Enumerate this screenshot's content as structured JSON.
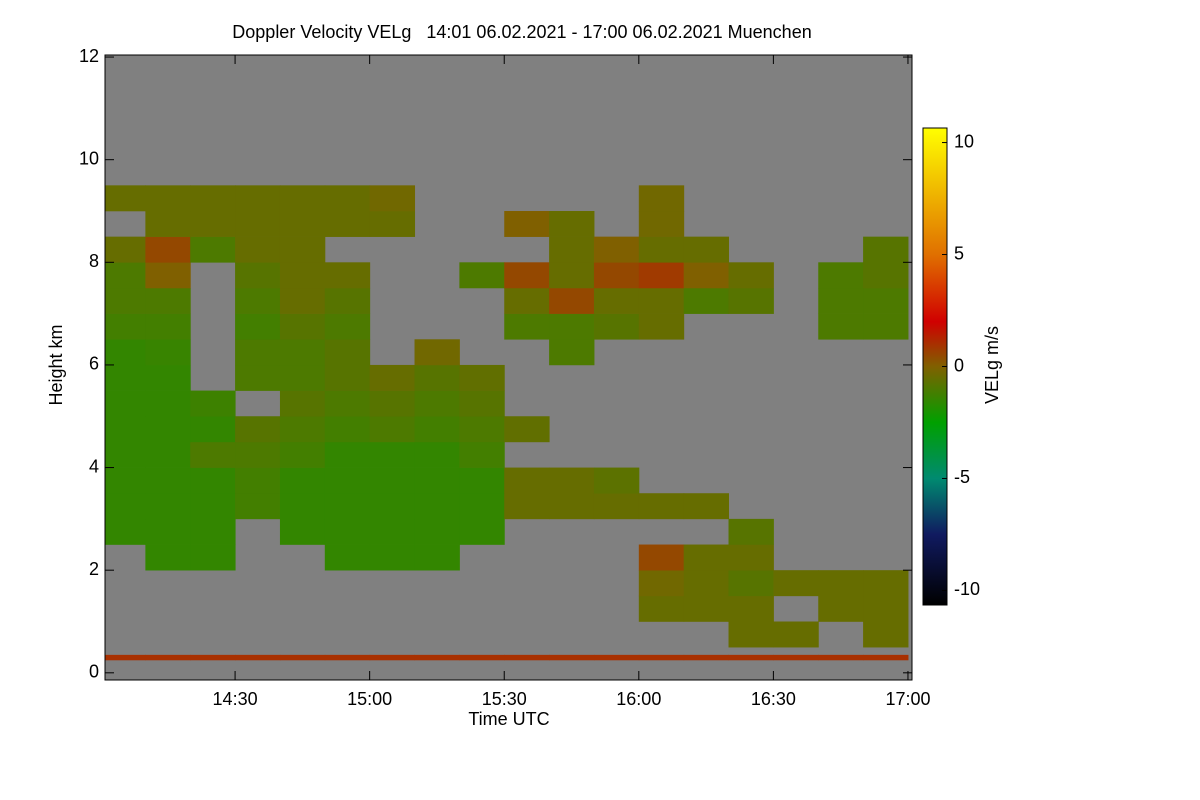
{
  "chart_data": {
    "type": "heatmap",
    "title": "Doppler Velocity VELg   14:01 06.02.2021 - 17:00 06.02.2021 Muenchen",
    "x_label": "Time UTC",
    "y_label": "Height km",
    "colorbar_label": "VELg m/s",
    "background": "#808080",
    "grid": false,
    "xlim": [
      14.0167,
      17.015
    ],
    "xticks": [
      {
        "value": 14.5,
        "label": "14:30"
      },
      {
        "value": 15.0,
        "label": "15:00"
      },
      {
        "value": 15.5,
        "label": "15:30"
      },
      {
        "value": 16.0,
        "label": "16:00"
      },
      {
        "value": 16.5,
        "label": "16:30"
      },
      {
        "value": 17.0,
        "label": "17:00"
      }
    ],
    "ylim": [
      -0.14,
      12.04
    ],
    "yticks": [
      0,
      2,
      4,
      6,
      8,
      10,
      12
    ],
    "zlim": [
      -10.65,
      10.65
    ],
    "zticks": [
      -10,
      -5,
      0,
      5,
      10
    ],
    "colormap": [
      [
        -10.65,
        "#000000"
      ],
      [
        -7.5,
        "#101a60"
      ],
      [
        -5,
        "#008a70"
      ],
      [
        -2.5,
        "#00a000"
      ],
      [
        0,
        "#806000"
      ],
      [
        2,
        "#d00000"
      ],
      [
        5,
        "#e07000"
      ],
      [
        10.65,
        "#ffff00"
      ]
    ],
    "xbins": [
      14.0,
      14.1667,
      14.3333,
      14.5,
      14.6667,
      14.8333,
      15.0,
      15.1667,
      15.3333,
      15.5,
      15.6667,
      15.8333,
      16.0,
      16.1667,
      16.3333,
      16.5,
      16.6667,
      16.8333,
      17.0
    ],
    "ybins": [
      0.25,
      0.35,
      0.5,
      1.0,
      1.5,
      2.0,
      2.5,
      3.0,
      3.5,
      4.0,
      4.5,
      5.0,
      5.5,
      6.0,
      6.5,
      7.0,
      7.5,
      8.0,
      8.5,
      9.0,
      9.5,
      10.0,
      10.5,
      11.0,
      11.5,
      12.0
    ],
    "values": [
      [
        1,
        1,
        1,
        1,
        1,
        1,
        1,
        1,
        1,
        1,
        1,
        1,
        1,
        1,
        1,
        1,
        1,
        1
      ],
      [
        null,
        null,
        null,
        null,
        null,
        null,
        null,
        null,
        null,
        null,
        null,
        null,
        null,
        null,
        null,
        null,
        null,
        null
      ],
      [
        null,
        null,
        null,
        null,
        null,
        null,
        null,
        null,
        null,
        null,
        null,
        null,
        null,
        null,
        -0.5,
        -0.5,
        null,
        -0.5
      ],
      [
        null,
        null,
        null,
        null,
        null,
        null,
        null,
        null,
        null,
        null,
        null,
        null,
        -0.5,
        -0.5,
        -0.5,
        null,
        -0.5,
        -0.5
      ],
      [
        null,
        null,
        null,
        null,
        null,
        null,
        null,
        null,
        null,
        null,
        null,
        null,
        -0.3,
        -0.5,
        -0.8,
        -0.5,
        -0.5,
        -0.5
      ],
      [
        null,
        -1.5,
        -1.5,
        null,
        null,
        -1.5,
        -1.5,
        -1.5,
        null,
        null,
        null,
        null,
        0.5,
        -0.5,
        -0.5,
        null,
        null,
        null
      ],
      [
        -1.5,
        -1.5,
        -1.5,
        null,
        -1.5,
        -1.5,
        -1.5,
        -1.5,
        -1.5,
        null,
        null,
        null,
        null,
        null,
        -0.8,
        null,
        null,
        null
      ],
      [
        -1.5,
        -1.5,
        -1.5,
        -1.2,
        -1.5,
        -1.5,
        -1.5,
        -1.5,
        -1.5,
        -0.5,
        -0.5,
        -0.5,
        -0.5,
        -0.5,
        null,
        null,
        null,
        null
      ],
      [
        -1.5,
        -1.5,
        -1.5,
        -1.2,
        -1.5,
        -1.5,
        -1.5,
        -1.5,
        -1.5,
        -0.5,
        -0.5,
        -0.7,
        null,
        null,
        null,
        null,
        null,
        null
      ],
      [
        -1.5,
        -1.5,
        -1,
        -1,
        -1.2,
        -1.5,
        -1.5,
        -1.5,
        -1.2,
        null,
        null,
        null,
        null,
        null,
        null,
        null,
        null,
        null
      ],
      [
        -1.5,
        -1.5,
        -1.5,
        -0.8,
        -1,
        -1.2,
        -1,
        -1.2,
        -1,
        -0.6,
        null,
        null,
        null,
        null,
        null,
        null,
        null,
        null
      ],
      [
        -1.5,
        -1.5,
        -1.3,
        null,
        -0.8,
        -1,
        -0.8,
        -1,
        -0.8,
        null,
        null,
        null,
        null,
        null,
        null,
        null,
        null,
        null
      ],
      [
        -1.5,
        -1.5,
        null,
        -1,
        -1,
        -0.8,
        -0.5,
        -0.8,
        -0.6,
        null,
        null,
        null,
        null,
        null,
        null,
        null,
        null,
        null
      ],
      [
        -1.5,
        -1.4,
        null,
        -1,
        -1,
        -0.8,
        null,
        -0.3,
        null,
        null,
        -1,
        null,
        null,
        null,
        null,
        null,
        null,
        null
      ],
      [
        -1.2,
        -1.2,
        null,
        -1.2,
        -0.8,
        -1,
        null,
        null,
        null,
        -1,
        -1,
        -0.8,
        -0.5,
        null,
        null,
        null,
        -1,
        -1
      ],
      [
        -1,
        -1,
        null,
        -1,
        -0.5,
        -0.8,
        null,
        null,
        null,
        -0.5,
        0.5,
        -0.5,
        -0.5,
        -1,
        -0.8,
        null,
        -1,
        -1
      ],
      [
        -1,
        0,
        null,
        -0.8,
        -0.5,
        -0.5,
        null,
        null,
        -1,
        0.5,
        -0.5,
        0.5,
        0.8,
        0,
        -0.5,
        null,
        -1,
        -0.8
      ],
      [
        -0.5,
        0.5,
        -1,
        -0.5,
        -0.5,
        null,
        null,
        null,
        null,
        null,
        -0.5,
        0,
        -0.5,
        -0.5,
        null,
        null,
        null,
        -0.8
      ],
      [
        null,
        -0.5,
        -0.5,
        -0.5,
        -0.5,
        -0.5,
        -0.5,
        null,
        null,
        0,
        -0.5,
        null,
        -0.3,
        null,
        null,
        null,
        null,
        null
      ],
      [
        -0.5,
        -0.5,
        -0.5,
        -0.5,
        -0.5,
        -0.5,
        -0.3,
        null,
        null,
        null,
        null,
        null,
        -0.3,
        null,
        null,
        null,
        null,
        null
      ],
      [
        null,
        null,
        null,
        null,
        null,
        null,
        null,
        null,
        null,
        null,
        null,
        null,
        null,
        null,
        null,
        null,
        null,
        null
      ],
      [
        null,
        null,
        null,
        null,
        null,
        null,
        null,
        null,
        null,
        null,
        null,
        null,
        null,
        null,
        null,
        null,
        null,
        null
      ],
      [
        null,
        null,
        null,
        null,
        null,
        null,
        null,
        null,
        null,
        null,
        null,
        null,
        null,
        null,
        null,
        null,
        null,
        null
      ],
      [
        null,
        null,
        null,
        null,
        null,
        null,
        null,
        null,
        null,
        null,
        null,
        null,
        null,
        null,
        null,
        null,
        null,
        null
      ],
      [
        null,
        null,
        null,
        null,
        null,
        null,
        null,
        null,
        null,
        null,
        null,
        null,
        null,
        null,
        null,
        null,
        null,
        null
      ]
    ]
  }
}
